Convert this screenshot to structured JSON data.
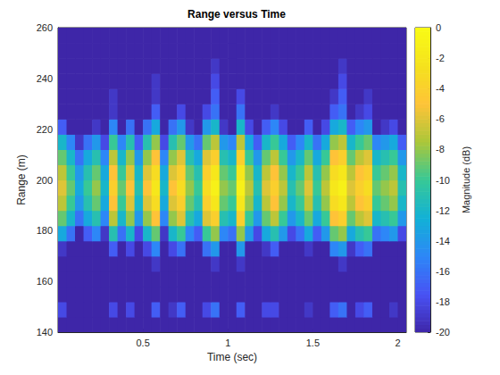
{
  "chart_data": {
    "type": "heatmap",
    "title": "Range versus Time",
    "xlabel": "Time (sec)",
    "ylabel": "Range (m)",
    "xlim": [
      0,
      2.05
    ],
    "xticks": [
      0.5,
      1,
      1.5,
      2
    ],
    "ylim": [
      140,
      260
    ],
    "yticks": [
      140,
      160,
      180,
      200,
      220,
      240,
      260
    ],
    "grid": false,
    "x": [
      0.025,
      0.075,
      0.125,
      0.175,
      0.225,
      0.275,
      0.325,
      0.375,
      0.425,
      0.475,
      0.525,
      0.575,
      0.625,
      0.675,
      0.725,
      0.775,
      0.825,
      0.875,
      0.925,
      0.975,
      1.025,
      1.075,
      1.125,
      1.175,
      1.225,
      1.275,
      1.325,
      1.375,
      1.425,
      1.475,
      1.525,
      1.575,
      1.625,
      1.675,
      1.725,
      1.775,
      1.825,
      1.875,
      1.925,
      1.975,
      2.025
    ],
    "y": [
      143,
      149,
      155,
      161,
      167,
      173,
      179,
      185,
      191,
      197,
      203,
      209,
      215,
      221,
      227,
      233,
      239,
      245,
      251,
      257
    ],
    "cells": [
      [
        -20,
        -20,
        -20,
        -20,
        -20,
        -20,
        -20,
        -20,
        -20,
        -20,
        -20,
        -20,
        -20,
        -20,
        -20,
        -20,
        -20,
        -20,
        -20,
        -20,
        -20,
        -20,
        -20,
        -20,
        -20,
        -20,
        -20,
        -20,
        -20,
        -20,
        -20,
        -20,
        -20,
        -20,
        -20,
        -20,
        -20,
        -20,
        -20,
        -20,
        -20
      ],
      [
        -18,
        -20,
        -20,
        -20,
        -20,
        -20,
        -18,
        -20,
        -18,
        -20,
        -20,
        -17,
        -20,
        -19,
        -17,
        -20,
        -20,
        -18,
        -16,
        -20,
        -20,
        -17,
        -20,
        -20,
        -18,
        -18,
        -20,
        -20,
        -20,
        -19,
        -20,
        -20,
        -17,
        -16,
        -20,
        -18,
        -17,
        -20,
        -20,
        -19,
        -20
      ],
      [
        -20,
        -20,
        -20,
        -20,
        -20,
        -20,
        -20,
        -20,
        -20,
        -20,
        -20,
        -20,
        -20,
        -20,
        -20,
        -20,
        -20,
        -20,
        -20,
        -20,
        -20,
        -20,
        -20,
        -20,
        -20,
        -20,
        -20,
        -20,
        -20,
        -20,
        -20,
        -20,
        -20,
        -20,
        -20,
        -20,
        -20,
        -20,
        -20,
        -20,
        -20
      ],
      [
        -20,
        -20,
        -20,
        -20,
        -20,
        -20,
        -20,
        -20,
        -20,
        -20,
        -20,
        -20,
        -20,
        -20,
        -20,
        -20,
        -20,
        -20,
        -20,
        -20,
        -20,
        -20,
        -20,
        -20,
        -20,
        -20,
        -20,
        -20,
        -20,
        -20,
        -20,
        -20,
        -20,
        -20,
        -20,
        -20,
        -20,
        -20,
        -20,
        -20,
        -20
      ],
      [
        -20,
        -20,
        -20,
        -20,
        -20,
        -20,
        -20,
        -20,
        -20,
        -20,
        -20,
        -19,
        -20,
        -20,
        -20,
        -20,
        -20,
        -20,
        -19,
        -20,
        -20,
        -19,
        -20,
        -20,
        -20,
        -20,
        -20,
        -20,
        -20,
        -20,
        -20,
        -20,
        -20,
        -19,
        -20,
        -20,
        -20,
        -20,
        -20,
        -20,
        -20
      ],
      [
        -19,
        -20,
        -20,
        -20,
        -20,
        -20,
        -17,
        -20,
        -18,
        -20,
        -18,
        -15,
        -20,
        -18,
        -16,
        -20,
        -20,
        -16,
        -14,
        -20,
        -20,
        -14,
        -20,
        -20,
        -19,
        -17,
        -20,
        -20,
        -20,
        -19,
        -20,
        -20,
        -15,
        -14,
        -19,
        -17,
        -16,
        -20,
        -20,
        -20,
        -20
      ],
      [
        -13,
        -16,
        -20,
        -17,
        -15,
        -19,
        -11,
        -16,
        -12,
        -18,
        -12,
        -9,
        -19,
        -12,
        -10,
        -15,
        -17,
        -10,
        -8,
        -15,
        -16,
        -8,
        -14,
        -18,
        -13,
        -11,
        -14,
        -18,
        -16,
        -13,
        -17,
        -14,
        -9,
        -8,
        -13,
        -11,
        -10,
        -16,
        -15,
        -14,
        -18
      ],
      [
        -9,
        -12,
        -16,
        -13,
        -11,
        -15,
        -7,
        -12,
        -8,
        -14,
        -8,
        -5,
        -15,
        -8,
        -6,
        -11,
        -13,
        -6,
        -4,
        -11,
        -12,
        -4,
        -10,
        -14,
        -9,
        -7,
        -10,
        -14,
        -12,
        -9,
        -13,
        -10,
        -5,
        -4,
        -9,
        -7,
        -6,
        -12,
        -11,
        -10,
        -14
      ],
      [
        -7,
        -10,
        -14,
        -11,
        -9,
        -13,
        -5,
        -10,
        -6,
        -12,
        -6,
        -3,
        -13,
        -6,
        -4,
        -9,
        -11,
        -4,
        -2,
        -9,
        -10,
        -2,
        -8,
        -12,
        -7,
        -5,
        -8,
        -12,
        -10,
        -7,
        -11,
        -8,
        -3,
        -2,
        -7,
        -5,
        -4,
        -10,
        -9,
        -8,
        -12
      ],
      [
        -6,
        -9,
        -13,
        -10,
        -8,
        -12,
        -4,
        -9,
        -5,
        -11,
        -5,
        -2,
        -12,
        -5,
        -3,
        -8,
        -10,
        -3,
        -1,
        -8,
        -9,
        -1,
        -7,
        -11,
        -6,
        -4,
        -7,
        -11,
        -9,
        -6,
        -10,
        -7,
        -2,
        -1,
        -6,
        -4,
        -3,
        -9,
        -8,
        -7,
        -11
      ],
      [
        -7,
        -10,
        -14,
        -11,
        -9,
        -13,
        -5,
        -10,
        -6,
        -12,
        -6,
        -3,
        -13,
        -6,
        -4,
        -9,
        -11,
        -4,
        -2,
        -9,
        -10,
        -2,
        -8,
        -12,
        -7,
        -5,
        -8,
        -12,
        -10,
        -7,
        -11,
        -8,
        -3,
        -2,
        -7,
        -5,
        -4,
        -10,
        -9,
        -8,
        -12
      ],
      [
        -9,
        -12,
        -16,
        -13,
        -11,
        -15,
        -7,
        -12,
        -8,
        -14,
        -8,
        -5,
        -15,
        -8,
        -6,
        -11,
        -13,
        -6,
        -4,
        -11,
        -12,
        -4,
        -10,
        -14,
        -9,
        -7,
        -10,
        -14,
        -12,
        -9,
        -13,
        -10,
        -5,
        -4,
        -9,
        -7,
        -6,
        -12,
        -11,
        -10,
        -14
      ],
      [
        -12,
        -15,
        -19,
        -16,
        -14,
        -18,
        -10,
        -15,
        -11,
        -17,
        -11,
        -8,
        -18,
        -11,
        -9,
        -14,
        -16,
        -9,
        -7,
        -14,
        -15,
        -7,
        -13,
        -17,
        -12,
        -10,
        -13,
        -17,
        -15,
        -12,
        -16,
        -13,
        -8,
        -7,
        -12,
        -10,
        -9,
        -15,
        -14,
        -13,
        -17
      ],
      [
        -17,
        -20,
        -20,
        -20,
        -19,
        -20,
        -15,
        -20,
        -16,
        -20,
        -16,
        -13,
        -20,
        -16,
        -14,
        -19,
        -20,
        -14,
        -12,
        -19,
        -20,
        -12,
        -18,
        -20,
        -17,
        -15,
        -18,
        -20,
        -20,
        -17,
        -20,
        -18,
        -13,
        -12,
        -17,
        -15,
        -14,
        -20,
        -19,
        -18,
        -20
      ],
      [
        -20,
        -20,
        -20,
        -20,
        -20,
        -20,
        -19,
        -20,
        -20,
        -20,
        -20,
        -17,
        -20,
        -20,
        -18,
        -20,
        -20,
        -18,
        -16,
        -20,
        -20,
        -16,
        -20,
        -20,
        -20,
        -19,
        -20,
        -20,
        -20,
        -20,
        -20,
        -20,
        -17,
        -16,
        -20,
        -19,
        -18,
        -20,
        -20,
        -20,
        -20
      ],
      [
        -20,
        -20,
        -20,
        -20,
        -20,
        -20,
        -19,
        -20,
        -20,
        -20,
        -20,
        -19,
        -20,
        -20,
        -20,
        -20,
        -20,
        -20,
        -17,
        -20,
        -20,
        -18,
        -20,
        -20,
        -20,
        -20,
        -20,
        -20,
        -20,
        -20,
        -20,
        -20,
        -19,
        -17,
        -20,
        -20,
        -19,
        -20,
        -20,
        -20,
        -20
      ],
      [
        -20,
        -20,
        -20,
        -20,
        -20,
        -20,
        -20,
        -20,
        -20,
        -20,
        -20,
        -19,
        -20,
        -20,
        -20,
        -20,
        -20,
        -20,
        -18,
        -20,
        -20,
        -20,
        -20,
        -20,
        -20,
        -20,
        -20,
        -20,
        -20,
        -20,
        -20,
        -20,
        -20,
        -18,
        -20,
        -20,
        -20,
        -20,
        -20,
        -20,
        -20
      ],
      [
        -20,
        -20,
        -20,
        -20,
        -20,
        -20,
        -20,
        -20,
        -20,
        -20,
        -20,
        -20,
        -20,
        -20,
        -20,
        -20,
        -20,
        -20,
        -19,
        -20,
        -20,
        -20,
        -20,
        -20,
        -20,
        -20,
        -20,
        -20,
        -20,
        -20,
        -20,
        -20,
        -20,
        -19,
        -20,
        -20,
        -20,
        -20,
        -20,
        -20,
        -20
      ],
      [
        -20,
        -20,
        -20,
        -20,
        -20,
        -20,
        -20,
        -20,
        -20,
        -20,
        -20,
        -20,
        -20,
        -20,
        -20,
        -20,
        -20,
        -20,
        -20,
        -20,
        -20,
        -20,
        -20,
        -20,
        -20,
        -20,
        -20,
        -20,
        -20,
        -20,
        -20,
        -20,
        -20,
        -20,
        -20,
        -20,
        -20,
        -20,
        -20,
        -20,
        -20
      ],
      [
        -20,
        -20,
        -20,
        -20,
        -20,
        -20,
        -20,
        -20,
        -20,
        -20,
        -20,
        -20,
        -20,
        -20,
        -20,
        -20,
        -20,
        -20,
        -20,
        -20,
        -20,
        -20,
        -20,
        -20,
        -20,
        -20,
        -20,
        -20,
        -20,
        -20,
        -20,
        -20,
        -20,
        -20,
        -20,
        -20,
        -20,
        -20,
        -20,
        -20,
        -20
      ]
    ],
    "colorbar": {
      "lim": [
        -20,
        0
      ],
      "ticks": [
        -20,
        -18,
        -16,
        -14,
        -12,
        -10,
        -8,
        -6,
        -4,
        -2,
        0
      ],
      "label": "Magnitude (dB)"
    }
  }
}
